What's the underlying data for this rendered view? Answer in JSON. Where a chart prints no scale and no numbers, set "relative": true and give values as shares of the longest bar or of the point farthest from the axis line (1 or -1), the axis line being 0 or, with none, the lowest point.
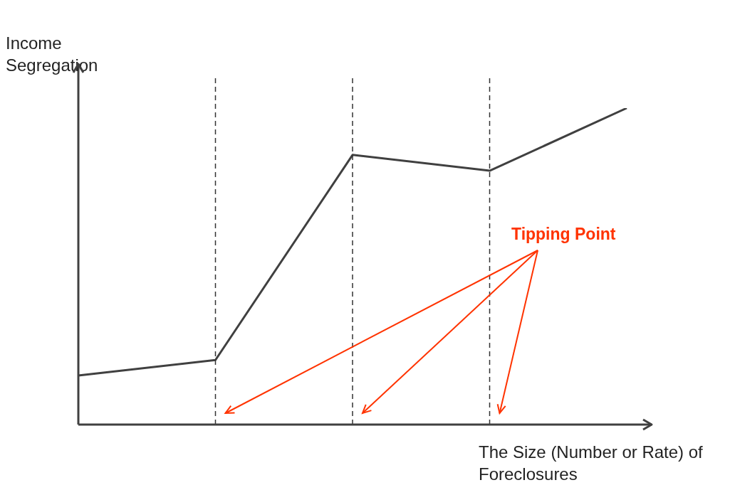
{
  "chart_data": {
    "type": "line",
    "relative": true,
    "grid": "x",
    "legend": false,
    "marker": "none",
    "line_style": "solid",
    "xlabel": "The Size (Number or Rate) of Foreclosures",
    "ylabel": "Income Segregation",
    "categories": [
      null,
      null,
      null,
      null,
      null
    ],
    "series": [
      {
        "color": "#404040",
        "values": [
          0.155,
          0.204,
          0.852,
          0.802,
          1
        ]
      }
    ],
    "annotations": [
      "Tipping Point"
    ]
  }
}
